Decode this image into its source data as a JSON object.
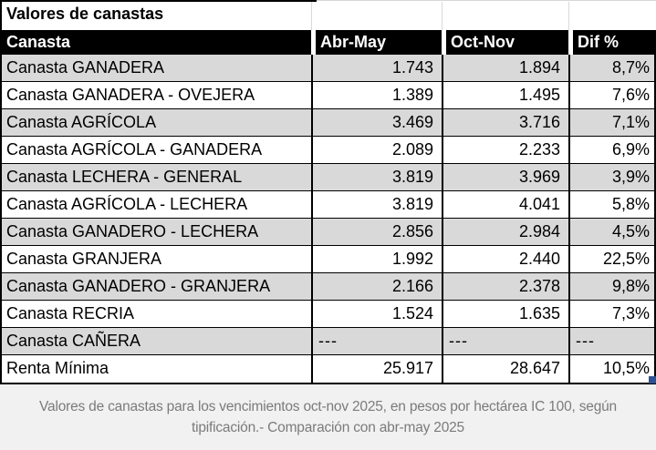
{
  "title": "Valores de canastas",
  "table": {
    "columns": [
      "Canasta",
      "Abr-May",
      "Oct-Nov",
      "Dif %"
    ],
    "rows": [
      {
        "name": "Canasta GANADERA",
        "abr_may": "1.743",
        "oct_nov": "1.894",
        "dif": "8,7%"
      },
      {
        "name": "Canasta GANADERA - OVEJERA",
        "abr_may": "1.389",
        "oct_nov": "1.495",
        "dif": "7,6%"
      },
      {
        "name": "Canasta AGRÍCOLA",
        "abr_may": "3.469",
        "oct_nov": "3.716",
        "dif": "7,1%"
      },
      {
        "name": "Canasta AGRÍCOLA - GANADERA",
        "abr_may": "2.089",
        "oct_nov": "2.233",
        "dif": "6,9%"
      },
      {
        "name": "Canasta LECHERA - GENERAL",
        "abr_may": "3.819",
        "oct_nov": "3.969",
        "dif": "3,9%"
      },
      {
        "name": "Canasta AGRÍCOLA - LECHERA",
        "abr_may": "3.819",
        "oct_nov": "4.041",
        "dif": "5,8%"
      },
      {
        "name": "Canasta GANADERO - LECHERA",
        "abr_may": "2.856",
        "oct_nov": "2.984",
        "dif": "4,5%"
      },
      {
        "name": "Canasta GRANJERA",
        "abr_may": "1.992",
        "oct_nov": "2.440",
        "dif": "22,5%"
      },
      {
        "name": "Canasta GANADERO - GRANJERA",
        "abr_may": "2.166",
        "oct_nov": "2.378",
        "dif": "9,8%"
      },
      {
        "name": "Canasta RECRIA",
        "abr_may": "1.524",
        "oct_nov": "1.635",
        "dif": "7,3%"
      },
      {
        "name": "Canasta CAÑERA",
        "abr_may": "---",
        "oct_nov": "---",
        "dif": "---"
      },
      {
        "name": "Renta Mínima",
        "abr_may": "25.917",
        "oct_nov": "28.647",
        "dif": "10,5%"
      }
    ]
  },
  "footer": {
    "caption_line1": "Valores de canastas para los vencimientos oct-nov 2025, en pesos por hectárea IC 100, según",
    "caption_line2": "tipificación.- Comparación con abr-may 2025"
  },
  "colors": {
    "header_bg": "#000000",
    "header_text": "#ffffff",
    "row_alt_bg": "#d9d9d9",
    "border": "#000000",
    "footer_bg": "#f1f1f1",
    "footer_text": "#7b7b7b",
    "selection_handle_blue": "#2e5395"
  },
  "chart_data": {
    "type": "table",
    "title": "Valores de canastas",
    "columns": [
      "Canasta",
      "Abr-May",
      "Oct-Nov",
      "Dif %"
    ],
    "rows": [
      [
        "Canasta GANADERA",
        1743,
        1894,
        "8,7%"
      ],
      [
        "Canasta GANADERA - OVEJERA",
        1389,
        1495,
        "7,6%"
      ],
      [
        "Canasta AGRÍCOLA",
        3469,
        3716,
        "7,1%"
      ],
      [
        "Canasta AGRÍCOLA - GANADERA",
        2089,
        2233,
        "6,9%"
      ],
      [
        "Canasta LECHERA - GENERAL",
        3819,
        3969,
        "3,9%"
      ],
      [
        "Canasta AGRÍCOLA - LECHERA",
        3819,
        4041,
        "5,8%"
      ],
      [
        "Canasta GANADERO - LECHERA",
        2856,
        2984,
        "4,5%"
      ],
      [
        "Canasta GRANJERA",
        1992,
        2440,
        "22,5%"
      ],
      [
        "Canasta GANADERO - GRANJERA",
        2166,
        2378,
        "9,8%"
      ],
      [
        "Canasta RECRIA",
        1524,
        1635,
        "7,3%"
      ],
      [
        "Canasta CAÑERA",
        null,
        null,
        null
      ],
      [
        "Renta Mínima",
        25917,
        28647,
        "10,5%"
      ]
    ]
  }
}
